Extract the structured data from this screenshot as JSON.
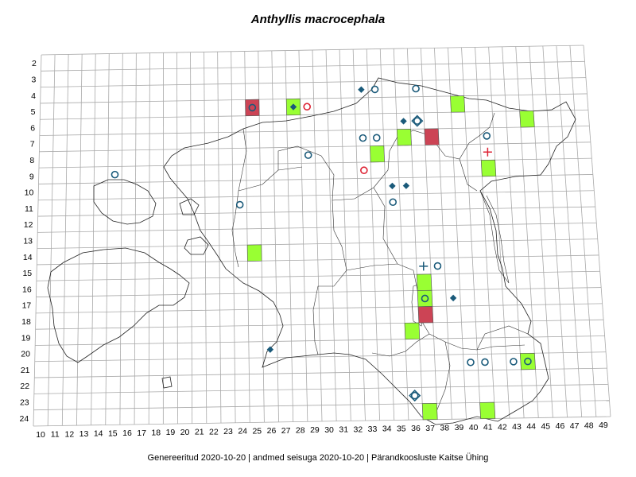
{
  "title": "Anthyllis macrocephala",
  "footer": "Genereeritud 2020-10-20  |  andmed seisuga 2020-10-20  |  Pärandkoosluste Kaitse Ühing",
  "colors": {
    "grid": "#a9a9a9",
    "border": "#222222",
    "square_green": "#99ff33",
    "square_red": "#cc4455",
    "marker_blue": "#1a5a7a",
    "marker_red": "#dd2233"
  },
  "map_data": {
    "x_ticks": [
      10,
      11,
      12,
      13,
      14,
      15,
      16,
      17,
      18,
      19,
      20,
      21,
      22,
      23,
      24,
      25,
      26,
      27,
      28,
      29,
      30,
      31,
      32,
      33,
      34,
      35,
      36,
      37,
      38,
      39,
      40,
      41,
      42,
      43,
      44,
      45,
      46,
      47,
      48,
      49
    ],
    "y_ticks": [
      2,
      3,
      4,
      5,
      6,
      7,
      8,
      9,
      10,
      11,
      12,
      13,
      14,
      15,
      16,
      17,
      18,
      19,
      20,
      21,
      22,
      23,
      24
    ],
    "squares": [
      {
        "x": 25,
        "y": 5,
        "kind": "red"
      },
      {
        "x": 28,
        "y": 5,
        "kind": "green"
      },
      {
        "x": 40,
        "y": 5,
        "kind": "green"
      },
      {
        "x": 45,
        "y": 6,
        "kind": "green"
      },
      {
        "x": 36,
        "y": 7,
        "kind": "green"
      },
      {
        "x": 38,
        "y": 7,
        "kind": "red"
      },
      {
        "x": 34,
        "y": 8,
        "kind": "green"
      },
      {
        "x": 42,
        "y": 9,
        "kind": "green"
      },
      {
        "x": 25,
        "y": 14,
        "kind": "green"
      },
      {
        "x": 37,
        "y": 16,
        "kind": "green"
      },
      {
        "x": 37,
        "y": 17,
        "kind": "green"
      },
      {
        "x": 37,
        "y": 18,
        "kind": "red"
      },
      {
        "x": 36,
        "y": 19,
        "kind": "green"
      },
      {
        "x": 44,
        "y": 21,
        "kind": "green"
      },
      {
        "x": 37,
        "y": 24,
        "kind": "green"
      },
      {
        "x": 41,
        "y": 24,
        "kind": "green"
      }
    ],
    "markers": [
      {
        "x": 25,
        "y": 5,
        "kind": "circle",
        "color": "blue"
      },
      {
        "x": 28,
        "y": 5,
        "kind": "diamond",
        "color": "blue"
      },
      {
        "x": 29,
        "y": 5,
        "kind": "circle",
        "color": "red"
      },
      {
        "x": 33,
        "y": 4,
        "kind": "diamond",
        "color": "blue"
      },
      {
        "x": 34,
        "y": 4,
        "kind": "circle",
        "color": "blue"
      },
      {
        "x": 37,
        "y": 4,
        "kind": "circle",
        "color": "blue"
      },
      {
        "x": 36,
        "y": 6,
        "kind": "diamond",
        "color": "blue"
      },
      {
        "x": 37,
        "y": 6,
        "kind": "circle",
        "color": "blue"
      },
      {
        "x": 37,
        "y": 6,
        "kind": "diamond-outline",
        "color": "blue"
      },
      {
        "x": 33,
        "y": 7,
        "kind": "circle",
        "color": "blue"
      },
      {
        "x": 34,
        "y": 7,
        "kind": "circle",
        "color": "blue"
      },
      {
        "x": 42,
        "y": 7,
        "kind": "circle",
        "color": "blue"
      },
      {
        "x": 42,
        "y": 8,
        "kind": "cross",
        "color": "red"
      },
      {
        "x": 29,
        "y": 8,
        "kind": "circle",
        "color": "blue"
      },
      {
        "x": 15,
        "y": 9,
        "kind": "circle",
        "color": "blue"
      },
      {
        "x": 33,
        "y": 9,
        "kind": "circle",
        "color": "red"
      },
      {
        "x": 35,
        "y": 10,
        "kind": "diamond",
        "color": "blue"
      },
      {
        "x": 36,
        "y": 10,
        "kind": "diamond",
        "color": "blue"
      },
      {
        "x": 35,
        "y": 11,
        "kind": "circle",
        "color": "blue"
      },
      {
        "x": 24,
        "y": 11,
        "kind": "circle",
        "color": "blue"
      },
      {
        "x": 37,
        "y": 15,
        "kind": "cross",
        "color": "blue"
      },
      {
        "x": 38,
        "y": 15,
        "kind": "circle",
        "color": "blue"
      },
      {
        "x": 37,
        "y": 17,
        "kind": "circle",
        "color": "blue"
      },
      {
        "x": 39,
        "y": 17,
        "kind": "diamond",
        "color": "blue"
      },
      {
        "x": 26,
        "y": 20,
        "kind": "diamond",
        "color": "blue"
      },
      {
        "x": 40,
        "y": 21,
        "kind": "circle",
        "color": "blue"
      },
      {
        "x": 41,
        "y": 21,
        "kind": "circle",
        "color": "blue"
      },
      {
        "x": 43,
        "y": 21,
        "kind": "circle",
        "color": "blue"
      },
      {
        "x": 44,
        "y": 21,
        "kind": "circle",
        "color": "blue"
      },
      {
        "x": 36,
        "y": 23,
        "kind": "circle",
        "color": "blue"
      },
      {
        "x": 36,
        "y": 23,
        "kind": "diamond-outline",
        "color": "blue"
      }
    ]
  }
}
